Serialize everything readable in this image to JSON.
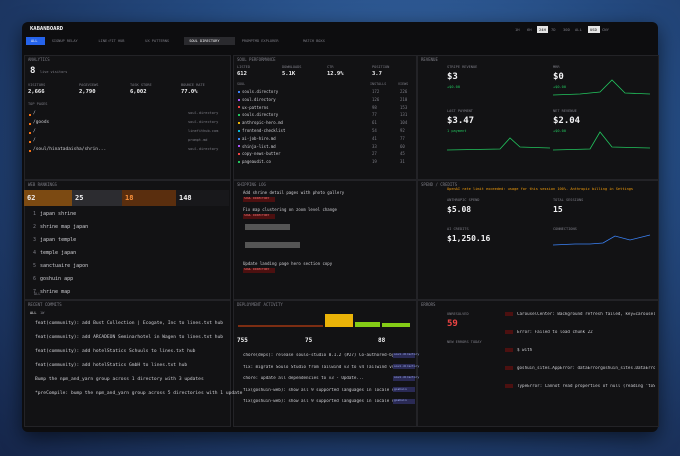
{
  "header": {
    "title": "KABANBOARD",
    "tabs": [
      "ALL",
      "SIGNUP RELAY",
      "LINE:FIT HUB",
      "UX PATTERNS",
      "SOUL DIRECTORY",
      "PROMPTMD EXPLORER",
      "MATCH BOXX"
    ],
    "ranges": [
      "1H",
      "6H",
      "24H",
      "7D",
      "30D",
      "ALL"
    ],
    "currencies": [
      "USD",
      "CNY"
    ]
  },
  "analytics": {
    "title": "ANALYTICS",
    "live": "8",
    "live_label": "live visitors",
    "stats": [
      {
        "label": "VISITORS",
        "value": "2,666"
      },
      {
        "label": "PAGEVIEWS",
        "value": "2,790"
      },
      {
        "label": "TASK STORE",
        "value": "6,002"
      },
      {
        "label": "BOUNCE RATE",
        "value": "77.0%"
      }
    ],
    "pages_title": "TOP PAGES",
    "pages": [
      {
        "path": "/",
        "host": "soul.directory"
      },
      {
        "path": "/goods",
        "host": "soul.directory"
      },
      {
        "path": "/",
        "host": "linefithub.com"
      },
      {
        "path": "/",
        "host": "prompt.md"
      },
      {
        "path": "/soul/hinatadaisha/shrin...",
        "host": "soul.directory"
      }
    ]
  },
  "soul": {
    "title": "SOUL PERFORMANCE",
    "stats": [
      {
        "label": "LISTED",
        "value": "612"
      },
      {
        "label": "DOWNLOADS",
        "value": "5.1K"
      },
      {
        "label": "CTR",
        "value": "12.9%"
      },
      {
        "label": "POSITION",
        "value": "3.7"
      }
    ],
    "columns": [
      "SOUL",
      "INSTALLS",
      "VIEWS"
    ],
    "rows": [
      [
        "souls.directory",
        "172",
        "226"
      ],
      [
        "soul.directory",
        "126",
        "210"
      ],
      [
        "ux-patterns",
        "98",
        "153"
      ],
      [
        "souls.directory",
        "77",
        "131"
      ],
      [
        "anthropic-hero.md",
        "61",
        "104"
      ],
      [
        "frontend-checklist",
        "54",
        "92"
      ],
      [
        "ai-job-hire.md",
        "41",
        "77"
      ],
      [
        "shinja-list.md",
        "33",
        "60"
      ],
      [
        "copy-news-butter",
        "27",
        "45"
      ],
      [
        "pageaudit.co",
        "19",
        "31"
      ]
    ]
  },
  "revenue": {
    "title": "REVENUE",
    "cards": [
      {
        "label": "STRIPE REVENUE",
        "value": "$3",
        "delta": "+$0.00"
      },
      {
        "label": "MRR",
        "value": "$0",
        "delta": "+$0.00"
      },
      {
        "label": "LAST PAYMENT",
        "value": "$3.47",
        "delta": "1 payment"
      },
      {
        "label": "NET REVENUE",
        "value": "$2.04",
        "delta": "+$0.00"
      }
    ]
  },
  "ranks": {
    "title": "WEB RANKINGS",
    "metrics": [
      "62",
      "25",
      "18",
      "148"
    ],
    "keywords": [
      {
        "rank": "1",
        "keyword": "japan shrine"
      },
      {
        "rank": "2",
        "keyword": "shrine map japan"
      },
      {
        "rank": "3",
        "keyword": "japan temple"
      },
      {
        "rank": "4",
        "keyword": "temple japan"
      },
      {
        "rank": "5",
        "keyword": "sanctuaire japon"
      },
      {
        "rank": "6",
        "keyword": "goshuin app"
      },
      {
        "rank": "7",
        "keyword": "shrine map"
      }
    ],
    "filter": "ALL"
  },
  "shipping": {
    "title": "SHIPPING LOG",
    "items": [
      {
        "text": "Add shrine detail pages with photo gallery",
        "tag": "SOUL DIRECTORY"
      },
      {
        "text": "Fix map clustering on zoom level change",
        "tag": "SOUL DIRECTORY"
      },
      {
        "text": "Update landing page hero section copy",
        "tag": "SOUL DIRECTORY"
      }
    ]
  },
  "spend": {
    "title": "SPEND / CREDITS",
    "banner": "OpenAI rate limit exceeded: usage for this session 100%. Anthropic billing in Settings",
    "cards": [
      {
        "label": "ANTHROPIC SPEND",
        "value": "$5.08"
      },
      {
        "label": "TOTAL SESSIONS",
        "value": "15"
      },
      {
        "label": "AI CREDITS",
        "value": "$1,250.16"
      },
      {
        "label": "CONNECTIONS",
        "value": ""
      }
    ]
  },
  "commits": {
    "title": "RECENT COMMITS",
    "tabs": [
      "ALL",
      "1W"
    ],
    "items": [
      "feat(community): add Bust Collection | Ecogate, Inc to lines.txt hub",
      "feat(community): add ARCADEON Seminarhotel in Wagen to lines.txt hub",
      "feat(community): add hotelStatics Schuuls to lines.txt hub",
      "feat(community): add hotelStatics GmbH to lines.txt hub",
      "Bump the npm_and_yarn group across 1 directory with 3 updates",
      "*preCompile: bump the npm_and_yarn group across 5 directories with 1 update"
    ]
  },
  "deploy": {
    "title": "DEPLOYMENT ACTIVITY",
    "stats": [
      "755",
      "75",
      "88"
    ],
    "items": [
      {
        "text": "chore(deps): release soulo-studio 0.1.2 (#27) Co-authored-by: github...",
        "tag": "soul-directory"
      },
      {
        "text": "fix: migrate Soulo Studio from Tailwind v3 to v4 Tailwind v4 mig...",
        "tag": "soul-directory"
      },
      {
        "text": "chore: update all dependencies to v3 - Update...",
        "tag": "soul-directory"
      },
      {
        "text": "fix(goshuin-web): show all 9 supported languages in locale switche...",
        "tag": "goshuin"
      },
      {
        "text": "fix(goshuin-web): show all 9 supported languages in locale switcher ...",
        "tag": "goshuin"
      }
    ]
  },
  "errors": {
    "title": "ERRORS",
    "unresolved_label": "UNRESOLVED",
    "unresolved": "59",
    "today_label": "NEW ERRORS TODAY",
    "items": [
      "CarouselCenter: Background refresh failed, key=carousel-city-guides-c...",
      "Error: Failed to load chunk 22",
      "$ with",
      "goshuin_sites.AppError: dataErrorgoshuin_sites.DataError.dataNotFound",
      "TypeError: Cannot read properties of null (reading 'toString')"
    ]
  }
}
